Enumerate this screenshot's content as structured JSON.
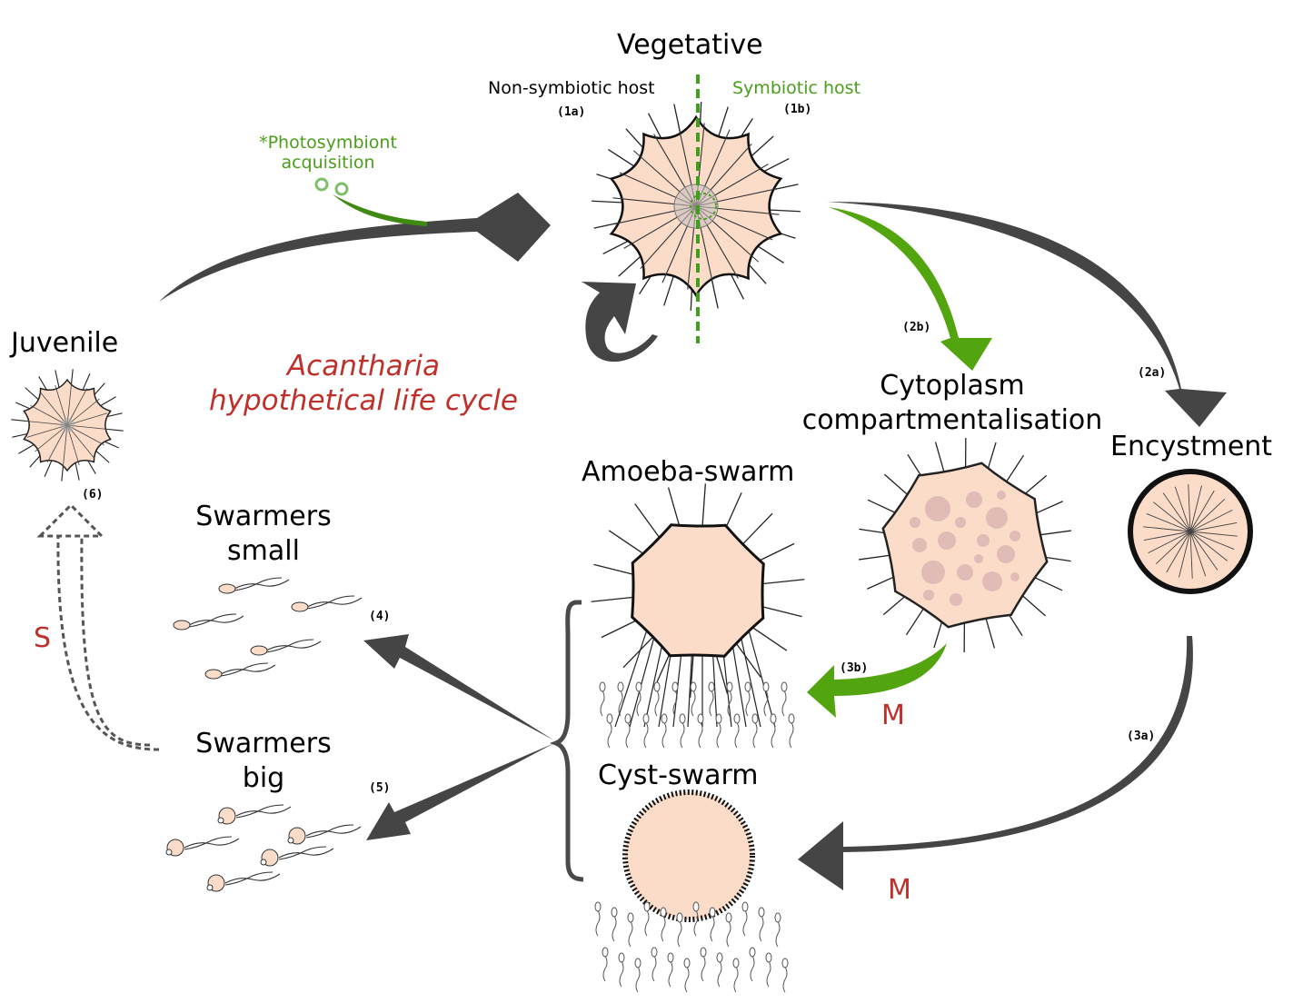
{
  "title": {
    "line1": "Acantharia",
    "line2": "hypothetical life cycle"
  },
  "stages": {
    "vegetative": "Vegetative",
    "non_symbiotic": "Non-symbiotic host",
    "symbiotic": "Symbiotic host",
    "photosymbiont_line1": "*Photosymbiont",
    "photosymbiont_line2": "acquisition",
    "juvenile": "Juvenile",
    "cytoplasm_line1": "Cytoplasm",
    "cytoplasm_line2": "compartmentalisation",
    "encystment": "Encystment",
    "amoeba_swarm": "Amoeba-swarm",
    "cyst_swarm": "Cyst-swarm",
    "swarmers_small_line1": "Swarmers",
    "swarmers_small_line2": "small",
    "swarmers_big_line1": "Swarmers",
    "swarmers_big_line2": "big"
  },
  "step_labels": {
    "s1a": "(1a)",
    "s1b": "(1b)",
    "s2a": "(2a)",
    "s2b": "(2b)",
    "s3a": "(3a)",
    "s3b": "(3b)",
    "s4": "(4)",
    "s5": "(5)",
    "s6": "(6)"
  },
  "division_labels": {
    "meiosis_3b": "M",
    "meiosis_3a": "M",
    "syngamy": "S"
  },
  "colors": {
    "arrow_dark": "#454545",
    "arrow_green": "#52a50f",
    "cell_fill": "#fbdcc9",
    "symbiont_green": "#4a9e1a",
    "label_red": "#c0302b",
    "compartment": "#dcb6b4"
  }
}
